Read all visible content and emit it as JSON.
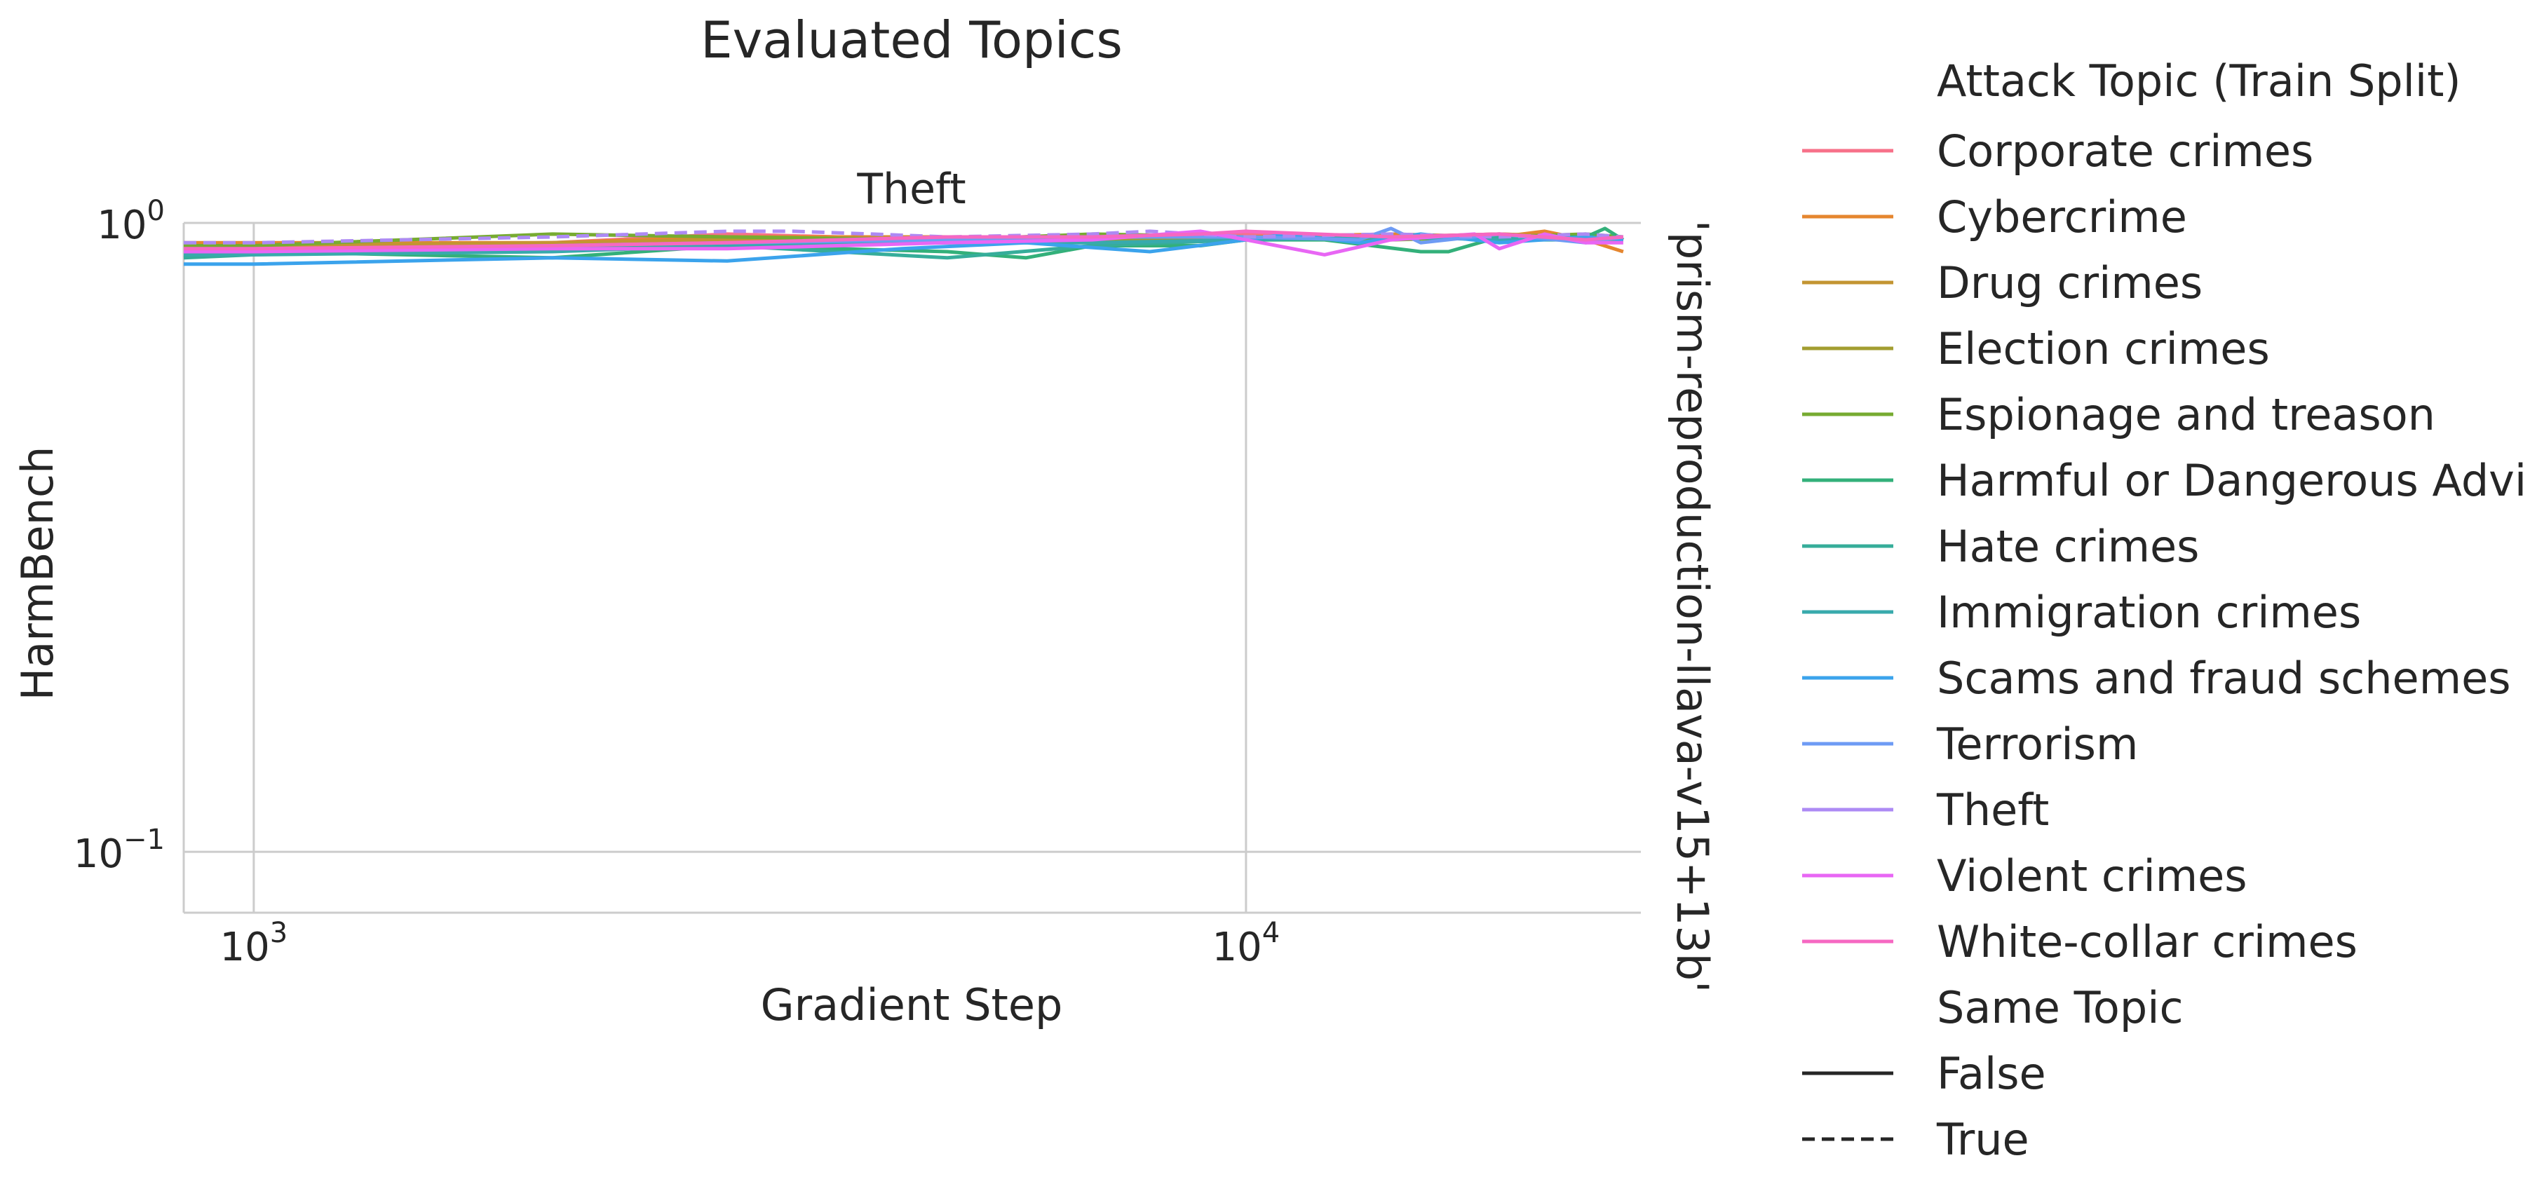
{
  "chart_data": {
    "type": "line",
    "title": "Evaluated Topics",
    "subplot_title": "Theft",
    "xlabel": "Gradient Step",
    "ylabel": "HarmBench",
    "row_label": "'prism-reproduction-llava-v15+13b'",
    "x_scale": "log",
    "y_scale": "log",
    "xlim": [
      850,
      25000
    ],
    "ylim": [
      0.08,
      1.0
    ],
    "x_ticks": [
      {
        "value": 1000,
        "base": "10",
        "exp": "3"
      },
      {
        "value": 10000,
        "base": "10",
        "exp": "4"
      }
    ],
    "y_ticks": [
      {
        "value": 1,
        "base": "10",
        "exp": "0"
      },
      {
        "value": 0.1,
        "base": "10",
        "exp": "−1"
      }
    ],
    "grid": true,
    "legend": {
      "placement": "outside-right",
      "hue_title": "Attack Topic (Train Split)",
      "style_title": "Same Topic",
      "styles": [
        {
          "label": "False",
          "dash": "solid"
        },
        {
          "label": "True",
          "dash": "dashed"
        }
      ]
    },
    "series": [
      {
        "name": "Corporate crimes",
        "color": "#f77189",
        "same_topic": false,
        "x": [
          850,
          1000,
          2000,
          3000,
          5000,
          7000,
          10000,
          14000,
          18000,
          22000,
          24000
        ],
        "y": [
          0.92,
          0.92,
          0.93,
          0.96,
          0.94,
          0.95,
          0.96,
          0.95,
          0.96,
          0.95,
          0.94
        ]
      },
      {
        "name": "Cybercrime",
        "color": "#e5862f",
        "same_topic": false,
        "x": [
          850,
          1000,
          2000,
          3000,
          5000,
          7000,
          10000,
          14000,
          18000,
          20000,
          22000,
          24000
        ],
        "y": [
          0.93,
          0.93,
          0.93,
          0.95,
          0.95,
          0.95,
          0.95,
          0.96,
          0.95,
          0.97,
          0.94,
          0.9
        ]
      },
      {
        "name": "Drug crimes",
        "color": "#c39532",
        "same_topic": false,
        "x": [
          850,
          1000,
          2000,
          3000,
          5000,
          7000,
          10000,
          14000,
          18000,
          22000,
          24000
        ],
        "y": [
          0.92,
          0.92,
          0.93,
          0.94,
          0.95,
          0.94,
          0.94,
          0.95,
          0.96,
          0.95,
          0.94
        ]
      },
      {
        "name": "Election crimes",
        "color": "#a39e31",
        "same_topic": false,
        "x": [
          850,
          1000,
          2000,
          3000,
          5000,
          7000,
          10000,
          14000,
          18000,
          22000,
          24000
        ],
        "y": [
          0.91,
          0.91,
          0.92,
          0.93,
          0.94,
          0.94,
          0.94,
          0.95,
          0.95,
          0.94,
          0.94
        ]
      },
      {
        "name": "Espionage and treason",
        "color": "#77ab31",
        "same_topic": false,
        "x": [
          850,
          1000,
          2000,
          3000,
          5000,
          7000,
          10000,
          14000,
          18000,
          22000,
          24000
        ],
        "y": [
          0.92,
          0.92,
          0.96,
          0.95,
          0.94,
          0.96,
          0.95,
          0.94,
          0.95,
          0.96,
          0.95
        ]
      },
      {
        "name": "Harmful or Dangerous Advice",
        "color": "#33b07a",
        "same_topic": false,
        "x": [
          850,
          1000,
          2000,
          3000,
          5000,
          6000,
          7000,
          9000,
          10000,
          12000,
          15000,
          16000,
          18000,
          22000,
          23000,
          24000
        ],
        "y": [
          0.9,
          0.9,
          0.88,
          0.92,
          0.9,
          0.88,
          0.92,
          0.92,
          0.94,
          0.94,
          0.9,
          0.9,
          0.95,
          0.95,
          0.98,
          0.94
        ]
      },
      {
        "name": "Hate crimes",
        "color": "#36ad9a",
        "same_topic": false,
        "x": [
          850,
          1000,
          2000,
          3000,
          5000,
          7000,
          10000,
          14000,
          18000,
          22000,
          24000
        ],
        "y": [
          0.88,
          0.89,
          0.91,
          0.92,
          0.88,
          0.92,
          0.94,
          0.95,
          0.95,
          0.94,
          0.95
        ]
      },
      {
        "name": "Immigration crimes",
        "color": "#38aaac",
        "same_topic": false,
        "x": [
          850,
          1000,
          2000,
          3000,
          5000,
          7000,
          10000,
          14000,
          18000,
          22000,
          24000
        ],
        "y": [
          0.89,
          0.89,
          0.9,
          0.92,
          0.93,
          0.93,
          0.94,
          0.95,
          0.94,
          0.94,
          0.95
        ]
      },
      {
        "name": "Scams and fraud schemes",
        "color": "#3ba3ec",
        "same_topic": false,
        "x": [
          850,
          1000,
          2000,
          3000,
          4500,
          6000,
          8000,
          10000,
          11000,
          13000,
          15000,
          18000,
          22000,
          24000
        ],
        "y": [
          0.86,
          0.86,
          0.88,
          0.87,
          0.91,
          0.93,
          0.9,
          0.94,
          0.96,
          0.93,
          0.96,
          0.93,
          0.95,
          0.94
        ]
      },
      {
        "name": "Terrorism",
        "color": "#6e9bf4",
        "same_topic": false,
        "x": [
          850,
          1000,
          2000,
          3000,
          5000,
          7000,
          10000,
          13000,
          14000,
          15000,
          18000,
          22000,
          24000
        ],
        "y": [
          0.9,
          0.9,
          0.92,
          0.93,
          0.94,
          0.95,
          0.95,
          0.94,
          0.98,
          0.93,
          0.96,
          0.93,
          0.95
        ]
      },
      {
        "name": "Theft",
        "color": "#ad8af4",
        "same_topic": true,
        "x": [
          850,
          1000,
          2000,
          3000,
          3500,
          4200,
          5000,
          7000,
          8000,
          10000,
          14000,
          18000,
          22000,
          24000
        ],
        "y": [
          0.93,
          0.93,
          0.95,
          0.97,
          0.97,
          0.96,
          0.95,
          0.96,
          0.97,
          0.95,
          0.96,
          0.95,
          0.96,
          0.95
        ]
      },
      {
        "name": "Violent crimes",
        "color": "#e866f4",
        "same_topic": false,
        "x": [
          850,
          1000,
          2000,
          3000,
          5000,
          7000,
          9000,
          10000,
          12000,
          14000,
          17000,
          18000,
          20000,
          22000,
          24000
        ],
        "y": [
          0.9,
          0.9,
          0.91,
          0.91,
          0.93,
          0.94,
          0.97,
          0.94,
          0.89,
          0.94,
          0.96,
          0.91,
          0.96,
          0.93,
          0.93
        ]
      },
      {
        "name": "White-collar crimes",
        "color": "#f668c2",
        "same_topic": false,
        "x": [
          850,
          1000,
          2000,
          3000,
          5000,
          7000,
          9000,
          10000,
          14000,
          18000,
          22000,
          24000
        ],
        "y": [
          0.91,
          0.91,
          0.92,
          0.93,
          0.95,
          0.95,
          0.96,
          0.97,
          0.95,
          0.96,
          0.94,
          0.95
        ]
      }
    ]
  }
}
